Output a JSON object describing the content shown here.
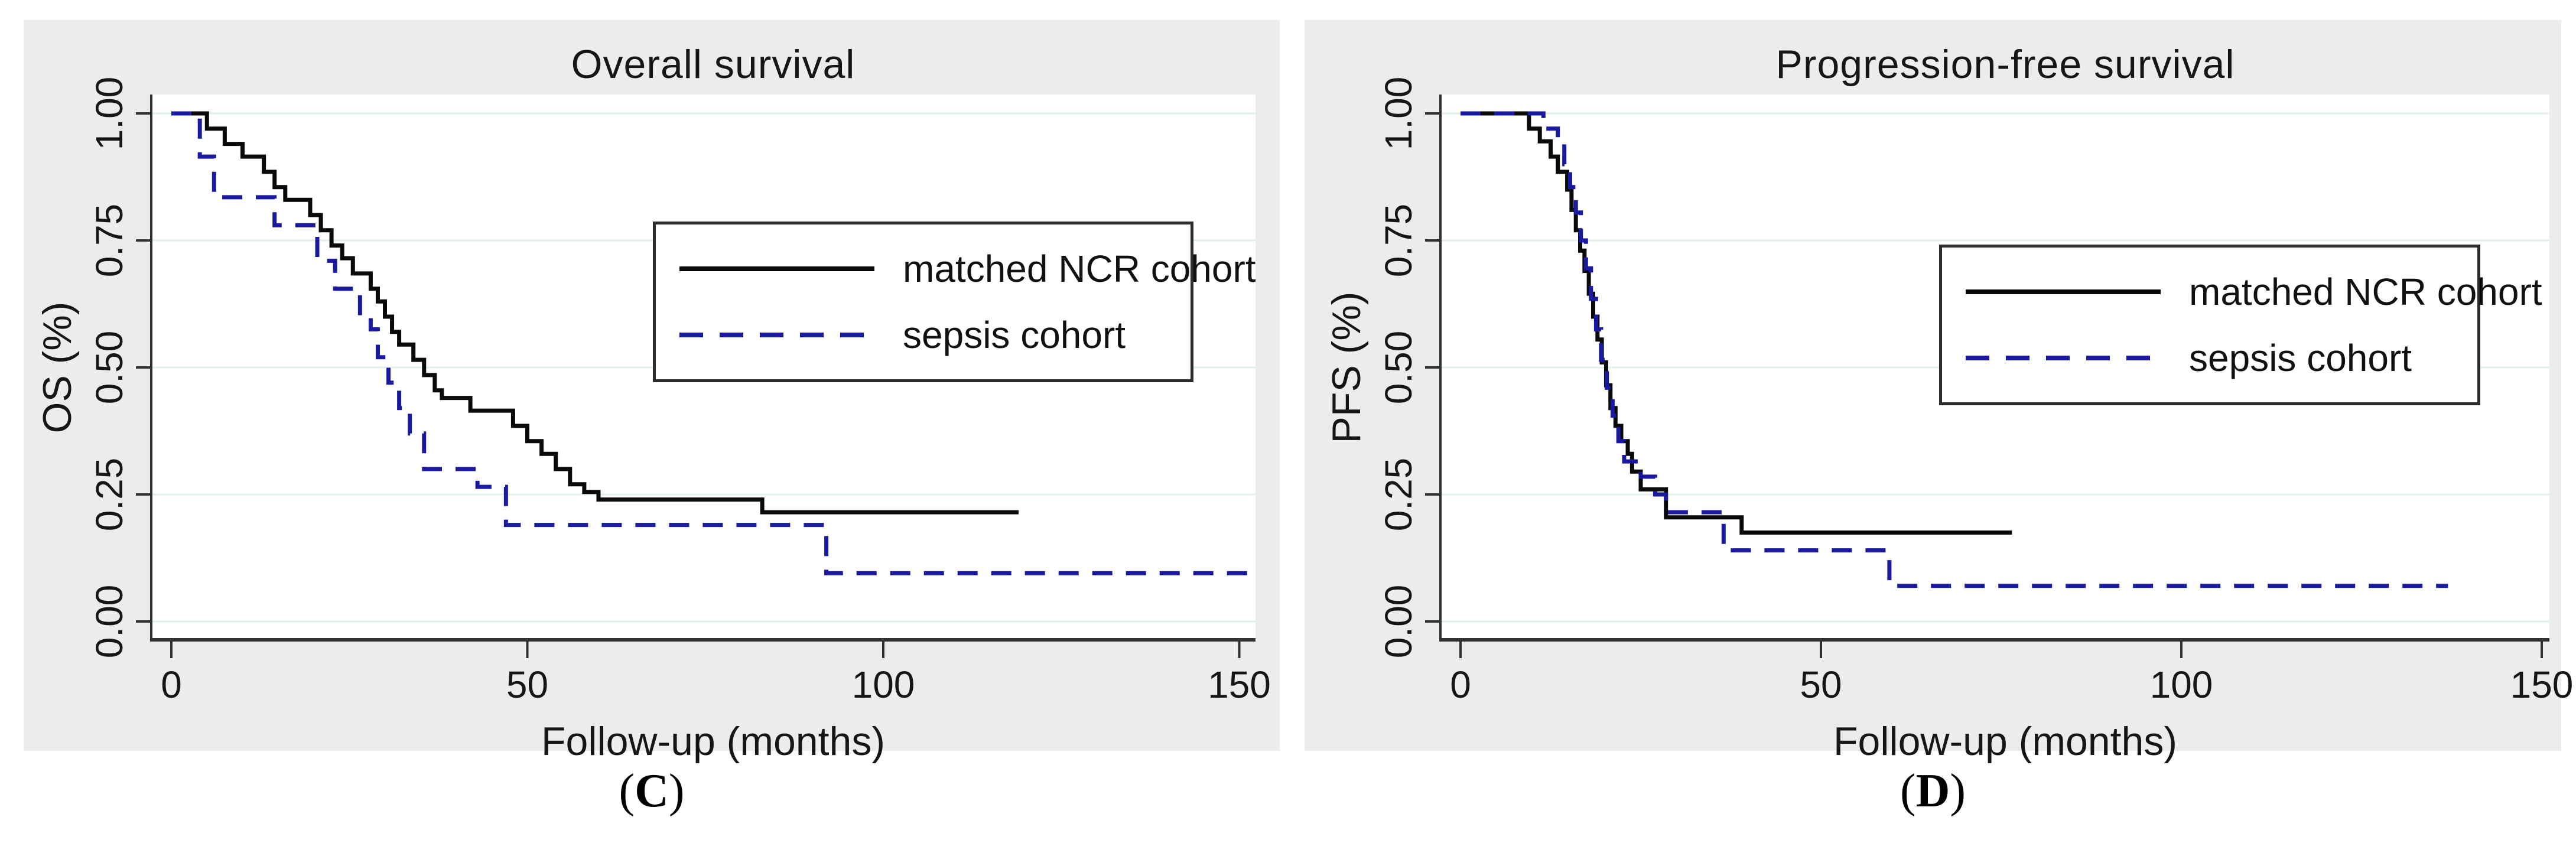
{
  "page": {
    "background": "#ffffff",
    "figure_background": "#ececec",
    "plot_background": "#ffffff",
    "gridline_color": "#e1f0ee",
    "axis_color": "#303030",
    "text_color": "#161616"
  },
  "captions": {
    "left_open": "(",
    "left_letter": "C",
    "left_close": ")",
    "right_open": "(",
    "right_letter": "D",
    "right_close": ")"
  },
  "chart_data": [
    {
      "panel_label": "C",
      "type": "line",
      "subtype": "kaplan_meier_step",
      "title": "Overall survival",
      "xlabel": "Follow-up (months)",
      "ylabel": "OS (%)",
      "xlim": [
        0,
        155
      ],
      "ylim": [
        0,
        1
      ],
      "xticks": [
        0,
        50,
        100,
        150
      ],
      "xtick_labels": [
        "0",
        "50",
        "100",
        "150"
      ],
      "yticks": [
        0,
        0.25,
        0.5,
        0.75,
        1
      ],
      "ytick_labels": [
        "0.00",
        "0.25",
        "0.50",
        "0.75",
        "1.00"
      ],
      "grid": true,
      "legend_position": "inside upper right",
      "series": [
        {
          "name": "matched NCR cohort",
          "line_style": "solid",
          "color": "#0a0a0a",
          "points": [
            [
              0,
              1.0
            ],
            [
              5,
              0.97
            ],
            [
              7.5,
              0.94
            ],
            [
              10,
              0.915
            ],
            [
              13,
              0.885
            ],
            [
              14.5,
              0.855
            ],
            [
              16,
              0.83
            ],
            [
              19.5,
              0.8
            ],
            [
              21,
              0.77
            ],
            [
              22.5,
              0.74
            ],
            [
              24,
              0.715
            ],
            [
              25.5,
              0.685
            ],
            [
              28,
              0.655
            ],
            [
              29,
              0.63
            ],
            [
              30,
              0.6
            ],
            [
              31,
              0.57
            ],
            [
              32,
              0.545
            ],
            [
              34,
              0.515
            ],
            [
              35.5,
              0.485
            ],
            [
              37,
              0.455
            ],
            [
              38,
              0.44
            ],
            [
              42,
              0.415
            ],
            [
              48,
              0.385
            ],
            [
              50,
              0.355
            ],
            [
              52,
              0.33
            ],
            [
              54,
              0.3
            ],
            [
              56,
              0.27
            ],
            [
              58,
              0.255
            ],
            [
              60,
              0.24
            ],
            [
              83,
              0.215
            ]
          ],
          "end_x": 119
        },
        {
          "name": "sepsis cohort",
          "line_style": "dashed",
          "color": "#1a1aa0",
          "points": [
            [
              0,
              1.0
            ],
            [
              4,
              0.915
            ],
            [
              6,
              0.835
            ],
            [
              14.5,
              0.78
            ],
            [
              20.5,
              0.71
            ],
            [
              23,
              0.655
            ],
            [
              26.5,
              0.6
            ],
            [
              28,
              0.575
            ],
            [
              29,
              0.52
            ],
            [
              30.5,
              0.47
            ],
            [
              32,
              0.42
            ],
            [
              33.5,
              0.37
            ],
            [
              35.5,
              0.3
            ],
            [
              43,
              0.265
            ],
            [
              47,
              0.19
            ],
            [
              92,
              0.095
            ]
          ],
          "end_x": 152
        }
      ]
    },
    {
      "panel_label": "D",
      "type": "line",
      "subtype": "kaplan_meier_step",
      "title": "Progression-free survival",
      "xlabel": "Follow-up (months)",
      "ylabel": "PFS (%)",
      "xlim": [
        0,
        155
      ],
      "ylim": [
        0,
        1
      ],
      "xticks": [
        0,
        50,
        100,
        150
      ],
      "xtick_labels": [
        "0",
        "50",
        "100",
        "150"
      ],
      "yticks": [
        0,
        0.25,
        0.5,
        0.75,
        1
      ],
      "ytick_labels": [
        "0.00",
        "0.25",
        "0.50",
        "0.75",
        "1.00"
      ],
      "grid": true,
      "legend_position": "inside upper right",
      "series": [
        {
          "name": "matched NCR cohort",
          "line_style": "solid",
          "color": "#0a0a0a",
          "points": [
            [
              0,
              1.0
            ],
            [
              9.5,
              0.97
            ],
            [
              11,
              0.945
            ],
            [
              12.5,
              0.915
            ],
            [
              13.5,
              0.885
            ],
            [
              14.8,
              0.85
            ],
            [
              15.4,
              0.81
            ],
            [
              16,
              0.77
            ],
            [
              16.6,
              0.73
            ],
            [
              17.2,
              0.69
            ],
            [
              17.8,
              0.645
            ],
            [
              18.4,
              0.6
            ],
            [
              19,
              0.555
            ],
            [
              19.6,
              0.51
            ],
            [
              20.2,
              0.465
            ],
            [
              20.8,
              0.42
            ],
            [
              21.5,
              0.385
            ],
            [
              22.3,
              0.355
            ],
            [
              23.2,
              0.33
            ],
            [
              23.8,
              0.295
            ],
            [
              25,
              0.26
            ],
            [
              28.5,
              0.205
            ],
            [
              39,
              0.175
            ]
          ],
          "end_x": 76.5
        },
        {
          "name": "sepsis cohort",
          "line_style": "dashed",
          "color": "#1a1aa0",
          "points": [
            [
              0,
              1.0
            ],
            [
              11.5,
              0.97
            ],
            [
              13.5,
              0.94
            ],
            [
              14.4,
              0.9
            ],
            [
              15.2,
              0.855
            ],
            [
              16,
              0.805
            ],
            [
              16.7,
              0.75
            ],
            [
              17.4,
              0.695
            ],
            [
              18.1,
              0.635
            ],
            [
              18.8,
              0.575
            ],
            [
              19.5,
              0.515
            ],
            [
              20.3,
              0.46
            ],
            [
              21.1,
              0.405
            ],
            [
              21.9,
              0.355
            ],
            [
              22.7,
              0.315
            ],
            [
              25,
              0.285
            ],
            [
              27,
              0.25
            ],
            [
              28.5,
              0.215
            ],
            [
              36.5,
              0.14
            ],
            [
              59.5,
              0.07
            ]
          ],
          "end_x": 137
        }
      ]
    }
  ]
}
